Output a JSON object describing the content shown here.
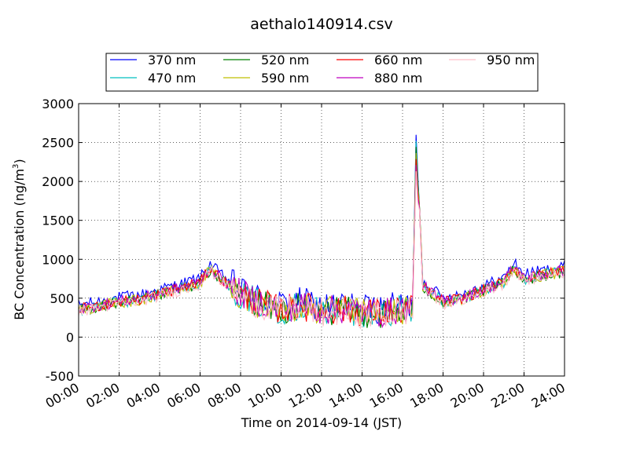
{
  "chart_data": {
    "type": "line",
    "title": "aethalo140914.csv",
    "xlabel": "Time on 2014-09-14 (JST)",
    "ylabel": "BC Concentration (ng/m",
    "ylabel_sup": "3",
    "ylabel_end": ")",
    "xlim": [
      "00:00",
      "24:00"
    ],
    "ylim": [
      -500,
      3000
    ],
    "x_ticks": [
      "00:00",
      "02:00",
      "04:00",
      "06:00",
      "08:00",
      "10:00",
      "12:00",
      "14:00",
      "16:00",
      "18:00",
      "20:00",
      "22:00",
      "24:00"
    ],
    "y_ticks": [
      -500,
      0,
      500,
      1000,
      1500,
      2000,
      2500,
      3000
    ],
    "grid": true,
    "legend_position": "top",
    "series": [
      {
        "name": "370 nm",
        "color": "#0000ff",
        "offset": 60
      },
      {
        "name": "470 nm",
        "color": "#00bfbf",
        "offset": 0
      },
      {
        "name": "520 nm",
        "color": "#008000",
        "offset": -10
      },
      {
        "name": "590 nm",
        "color": "#bfbf00",
        "offset": -5
      },
      {
        "name": "660 nm",
        "color": "#ff0000",
        "offset": 5
      },
      {
        "name": "880 nm",
        "color": "#bf00bf",
        "offset": 10
      },
      {
        "name": "950 nm",
        "color": "#ffc0cb",
        "offset": -20
      }
    ],
    "x": [
      "00:00",
      "01:00",
      "02:00",
      "03:00",
      "04:00",
      "05:00",
      "06:00",
      "06:30",
      "07:00",
      "08:00",
      "09:00",
      "10:00",
      "11:00",
      "12:00",
      "13:00",
      "14:00",
      "15:00",
      "16:00",
      "16:30",
      "16:40",
      "17:00",
      "18:00",
      "19:00",
      "20:00",
      "21:00",
      "21:30",
      "22:00",
      "23:00",
      "24:00"
    ],
    "base": [
      350,
      400,
      450,
      480,
      550,
      620,
      700,
      880,
      750,
      550,
      430,
      350,
      400,
      330,
      350,
      320,
      300,
      350,
      350,
      2600,
      650,
      450,
      500,
      600,
      700,
      900,
      750,
      800,
      850
    ]
  }
}
